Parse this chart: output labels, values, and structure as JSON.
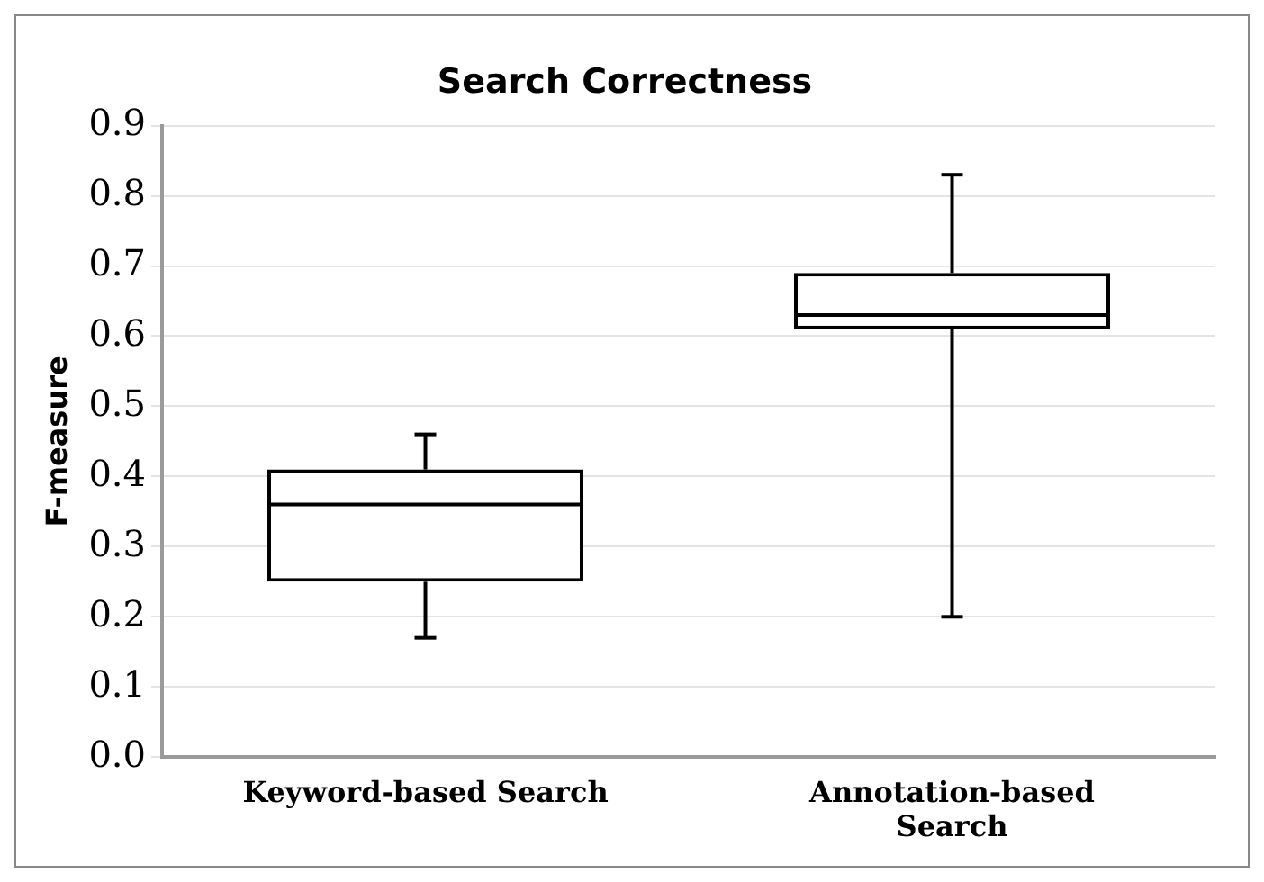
{
  "chart_data": {
    "type": "box",
    "title": "Search Correctness",
    "ylabel": "F-measure",
    "categories": [
      "Keyword-based Search",
      "Annotation-based Search"
    ],
    "boxes": [
      {
        "low": 0.17,
        "q1": 0.25,
        "median": 0.36,
        "q3": 0.41,
        "high": 0.46
      },
      {
        "low": 0.2,
        "q1": 0.61,
        "median": 0.63,
        "q3": 0.69,
        "high": 0.83
      }
    ],
    "color": "#000000",
    "ylim": [
      0,
      0.9
    ],
    "yticks": [
      {
        "value": 0,
        "label": "0.0"
      },
      0.1,
      0.2,
      0.3,
      0.4,
      0.5,
      0.6,
      0.7,
      0.8,
      0.9
    ],
    "grid": "y",
    "legend": false
  }
}
